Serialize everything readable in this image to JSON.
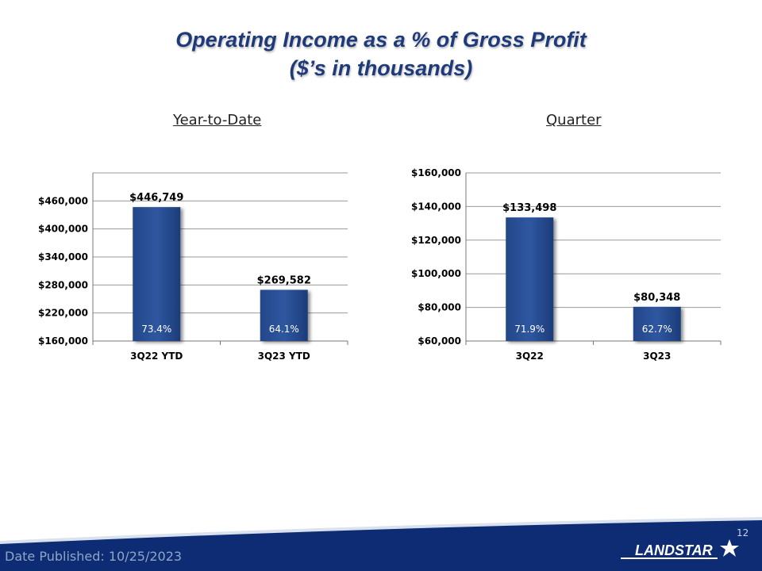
{
  "slide": {
    "title_line1": "Operating Income as a % of Gross Profit",
    "title_line2": "($’s in thousands)",
    "date_published": "Date Published:  10/25/2023",
    "page_number": "12",
    "logo_text": "LANDSTAR"
  },
  "colors": {
    "bar": "#2f57a0",
    "title": "#1f3a7a",
    "grid": "#999999"
  },
  "chart_data": [
    {
      "type": "bar",
      "title": "Year-to-Date",
      "categories": [
        "3Q22 YTD",
        "3Q23 YTD"
      ],
      "values": [
        446749,
        269582
      ],
      "value_labels": [
        "$446,749",
        "$269,582"
      ],
      "inner_labels": [
        "73.4%",
        "64.1%"
      ],
      "ylim": [
        160000,
        520000
      ],
      "yticks": [
        160000,
        220000,
        280000,
        340000,
        400000,
        460000
      ],
      "ytick_labels": [
        "$160,000",
        "$220,000",
        "$280,000",
        "$340,000",
        "$400,000",
        "$460,000"
      ],
      "grid": true
    },
    {
      "type": "bar",
      "title": "Quarter",
      "categories": [
        "3Q22",
        "3Q23"
      ],
      "values": [
        133498,
        80348
      ],
      "value_labels": [
        "$133,498",
        "$80,348"
      ],
      "inner_labels": [
        "71.9%",
        "62.7%"
      ],
      "ylim": [
        60000,
        160000
      ],
      "yticks": [
        60000,
        80000,
        100000,
        120000,
        140000,
        160000
      ],
      "ytick_labels": [
        "$60,000",
        "$80,000",
        "$100,000",
        "$120,000",
        "$140,000",
        "$160,000"
      ],
      "grid": true
    }
  ]
}
